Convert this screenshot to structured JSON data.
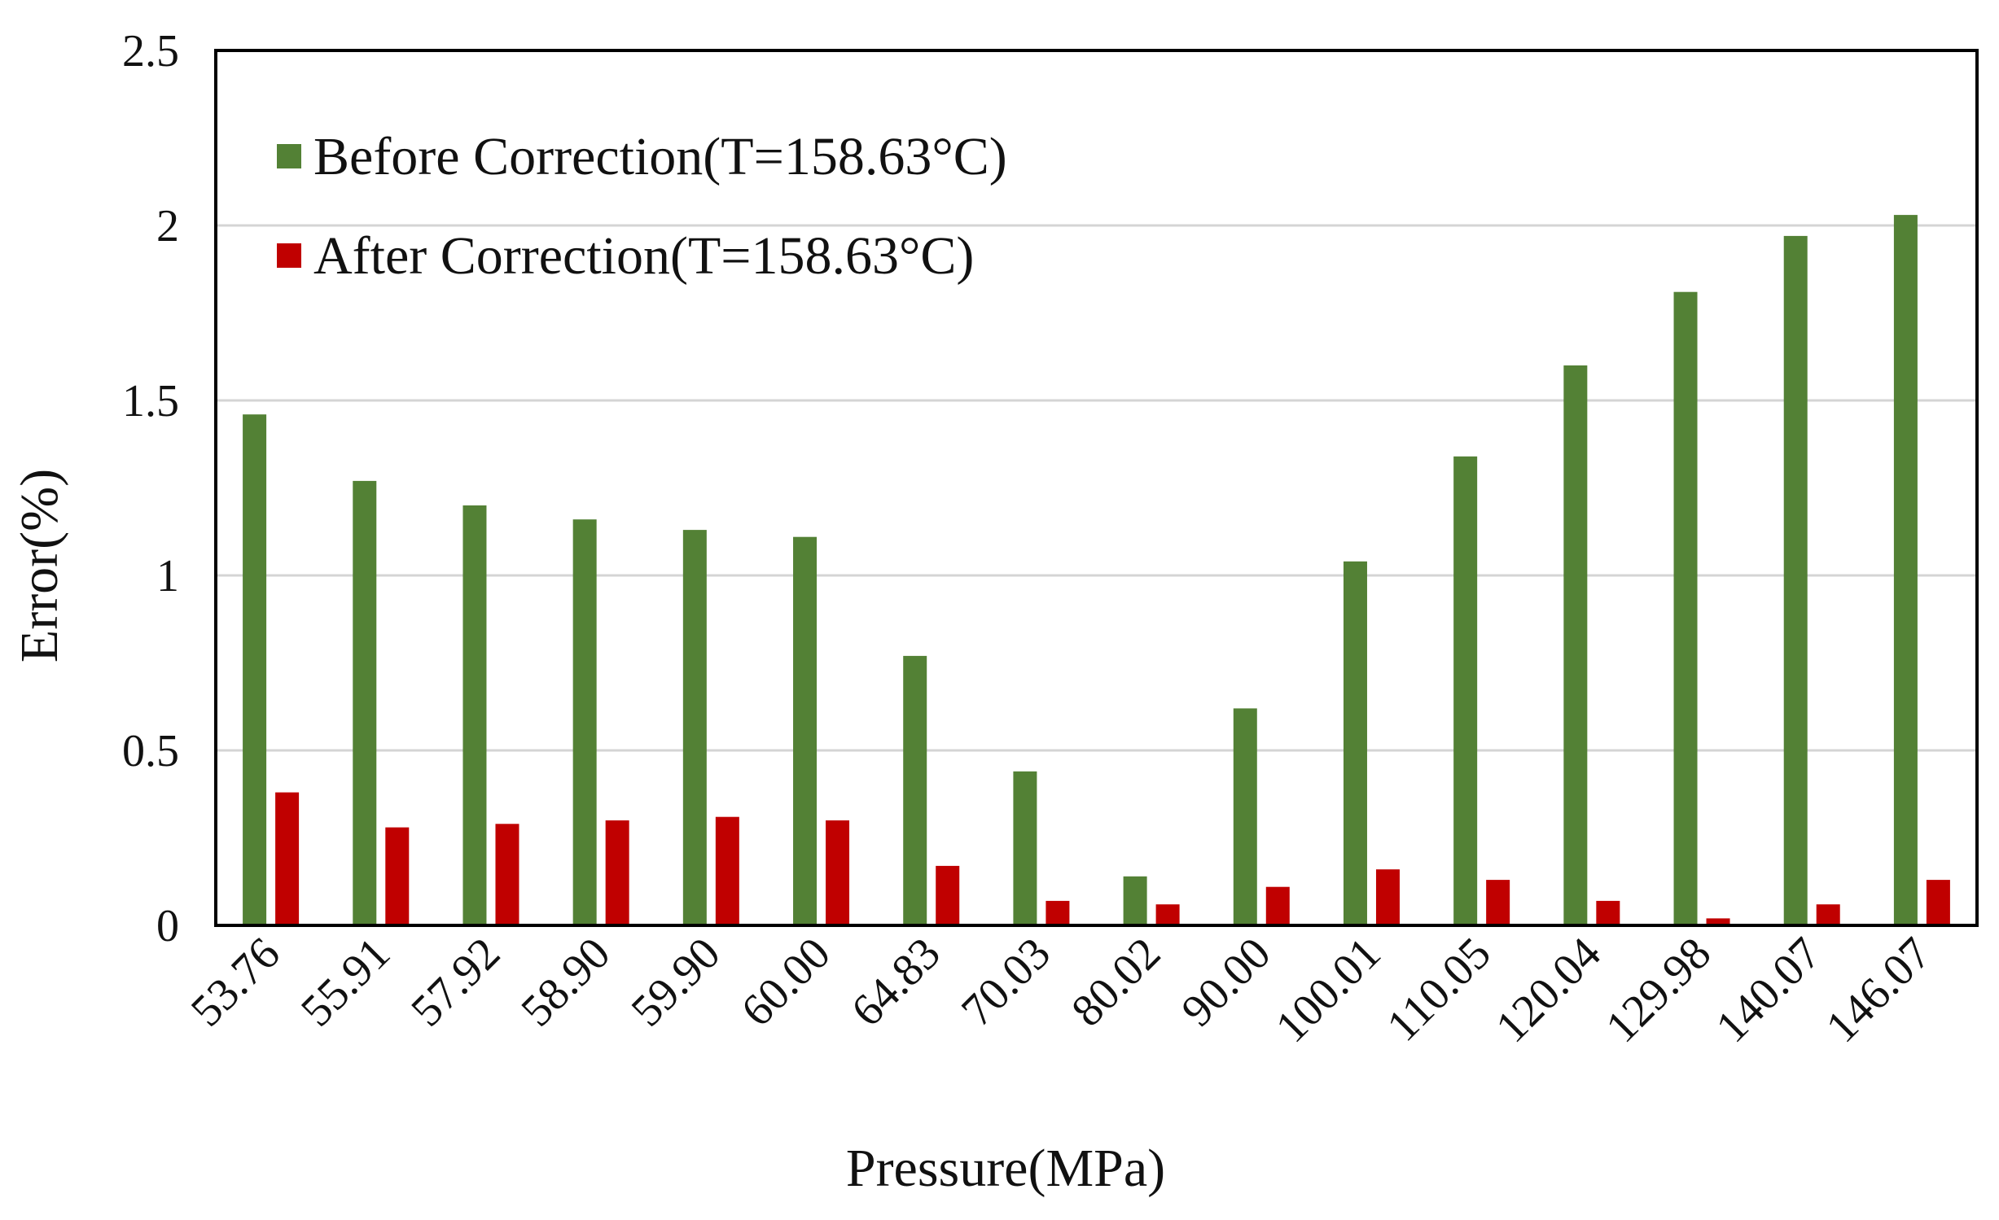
{
  "colors": {
    "before": "#538135",
    "after": "#C00000",
    "grid": "#d4d4d4",
    "frame": "#000000",
    "text": "#111111"
  },
  "chart_data": {
    "type": "bar",
    "title": "",
    "xlabel": "Pressure(MPa)",
    "ylabel": "Error(%)",
    "ylim": [
      0,
      2.5
    ],
    "yticks": [
      0,
      0.5,
      1,
      1.5,
      2,
      2.5
    ],
    "ytick_labels": [
      "0",
      "0.5",
      "1",
      "1.5",
      "2",
      "2.5"
    ],
    "grid": true,
    "legend_position": "top-left",
    "categories": [
      "53.76",
      "55.91",
      "57.92",
      "58.90",
      "59.90",
      "60.00",
      "64.83",
      "70.03",
      "80.02",
      "90.00",
      "100.01",
      "110.05",
      "120.04",
      "129.98",
      "140.07",
      "146.07"
    ],
    "series": [
      {
        "name": "Before Correction(T=158.63°C)",
        "color": "#538135",
        "values": [
          1.46,
          1.27,
          1.2,
          1.16,
          1.13,
          1.11,
          0.77,
          0.44,
          0.14,
          0.62,
          1.04,
          1.34,
          1.6,
          1.81,
          1.97,
          2.03
        ]
      },
      {
        "name": "After Correction(T=158.63°C)",
        "color": "#C00000",
        "values": [
          0.38,
          0.28,
          0.29,
          0.3,
          0.31,
          0.3,
          0.17,
          0.07,
          0.06,
          0.11,
          0.16,
          0.13,
          0.07,
          0.02,
          0.06,
          0.13
        ]
      }
    ]
  }
}
